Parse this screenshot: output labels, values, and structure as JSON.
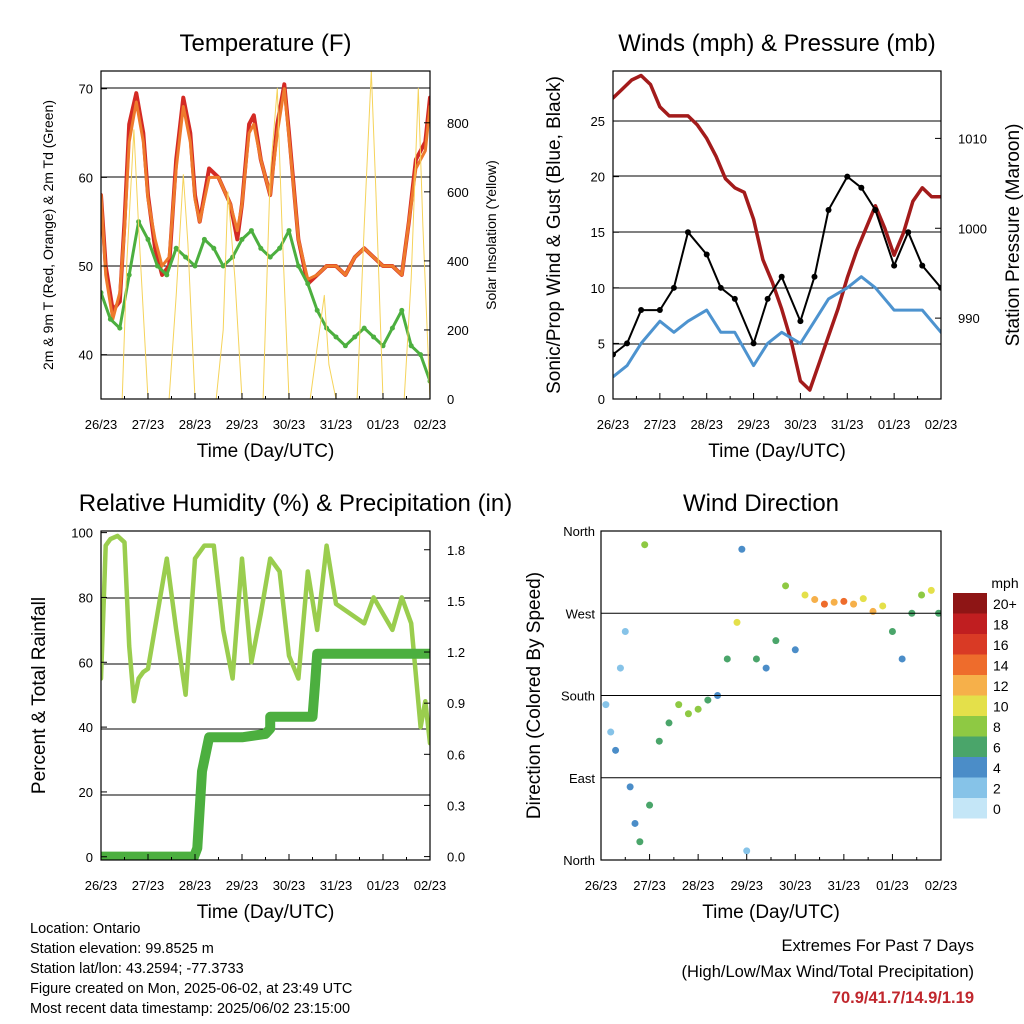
{
  "x_ticks": [
    "26/23",
    "27/23",
    "28/23",
    "29/23",
    "30/23",
    "31/23",
    "01/23",
    "02/23"
  ],
  "xlabel": "Time (Day/UTC)",
  "chart_data": [
    {
      "id": "temperature",
      "type": "line",
      "title": "Temperature (F)",
      "xlabel": "Time (Day/UTC)",
      "ylabel": "2m & 9m T (Red, Orange) & 2m Td (Green)",
      "ylim": [
        35,
        72
      ],
      "yticks": [
        40,
        50,
        60,
        70
      ],
      "y2label": "Solar Insolation (Yellow)",
      "y2lim": [
        0,
        950
      ],
      "y2ticks": [
        0,
        200,
        400,
        600,
        800
      ],
      "x_range_days": [
        0,
        7
      ],
      "series": [
        {
          "role": "2m T",
          "color": "#d42a24",
          "axis": "left",
          "x": [
            0,
            0.1,
            0.25,
            0.4,
            0.5,
            0.6,
            0.75,
            0.9,
            1.0,
            1.15,
            1.3,
            1.45,
            1.6,
            1.75,
            1.9,
            2.0,
            2.1,
            2.3,
            2.5,
            2.75,
            2.9,
            3.0,
            3.15,
            3.25,
            3.4,
            3.6,
            3.75,
            3.9,
            4.0,
            4.2,
            4.4,
            4.6,
            4.8,
            5.0,
            5.2,
            5.4,
            5.6,
            5.8,
            6.0,
            6.2,
            6.4,
            6.55,
            6.7,
            6.8,
            6.9,
            7.0
          ],
          "y": [
            58,
            50,
            45,
            46,
            55,
            66,
            69.5,
            65,
            58,
            52,
            49,
            50,
            62,
            69,
            65,
            58,
            55,
            61,
            60,
            57,
            53,
            57,
            66,
            67,
            62,
            58,
            66,
            70.5,
            65,
            53,
            48,
            49,
            50,
            50,
            49,
            51,
            52,
            51,
            50,
            50,
            49,
            55,
            62,
            63,
            64,
            69
          ]
        },
        {
          "role": "9m T",
          "color": "#ee7a2c",
          "axis": "left",
          "x": [
            0,
            0.1,
            0.25,
            0.4,
            0.5,
            0.6,
            0.75,
            0.9,
            1.0,
            1.15,
            1.3,
            1.45,
            1.6,
            1.75,
            1.9,
            2.0,
            2.1,
            2.3,
            2.5,
            2.75,
            2.9,
            3.0,
            3.15,
            3.25,
            3.4,
            3.6,
            3.75,
            3.9,
            4.0,
            4.2,
            4.4,
            4.6,
            4.8,
            5.0,
            5.2,
            5.4,
            5.6,
            5.8,
            6.0,
            6.2,
            6.4,
            6.55,
            6.7,
            6.8,
            6.9,
            7.0
          ],
          "y": [
            58,
            49,
            44,
            47,
            54,
            64,
            68.5,
            64,
            57.5,
            53,
            50,
            51,
            61,
            68,
            64,
            57.5,
            55,
            60,
            60,
            57,
            54,
            57,
            65,
            66,
            62,
            58,
            65,
            70,
            64.5,
            53,
            48.5,
            49,
            50,
            50,
            49,
            51,
            52,
            51,
            50,
            50,
            49,
            55,
            61,
            62,
            63,
            68
          ]
        },
        {
          "role": "2m Td",
          "color": "#4caf3f",
          "axis": "left",
          "x": [
            0,
            0.2,
            0.4,
            0.6,
            0.8,
            1.0,
            1.2,
            1.4,
            1.6,
            1.8,
            2.0,
            2.2,
            2.4,
            2.6,
            2.8,
            3.0,
            3.2,
            3.4,
            3.6,
            3.8,
            4.0,
            4.2,
            4.4,
            4.6,
            4.8,
            5.0,
            5.2,
            5.4,
            5.6,
            5.8,
            6.0,
            6.2,
            6.4,
            6.6,
            6.8,
            7.0
          ],
          "y": [
            47,
            44,
            43,
            49,
            55,
            53,
            50,
            49,
            52,
            51,
            50,
            53,
            52,
            50,
            51,
            53,
            54,
            52,
            51,
            52,
            54,
            50,
            48,
            45,
            43,
            42,
            41,
            42,
            43,
            42,
            41,
            43,
            45,
            41,
            40,
            37
          ]
        },
        {
          "role": "Solar Insolation",
          "color": "#f5d35a",
          "axis": "right",
          "x": [
            0,
            0.45,
            0.55,
            0.7,
            0.8,
            1.0,
            1.45,
            1.6,
            1.75,
            1.85,
            2.0,
            2.45,
            2.6,
            2.7,
            2.85,
            3.0,
            3.45,
            3.6,
            3.75,
            3.85,
            4.0,
            4.45,
            4.6,
            4.75,
            4.85,
            5.0,
            5.45,
            5.6,
            5.75,
            5.85,
            6.0,
            6.45,
            6.6,
            6.75,
            6.85,
            7.0
          ],
          "y": [
            0,
            0,
            400,
            780,
            500,
            0,
            0,
            300,
            650,
            450,
            0,
            0,
            200,
            600,
            350,
            0,
            0,
            650,
            900,
            500,
            0,
            0,
            150,
            300,
            100,
            0,
            0,
            500,
            950,
            600,
            0,
            0,
            350,
            900,
            500,
            0
          ]
        }
      ]
    },
    {
      "id": "winds",
      "type": "line",
      "title": "Winds (mph) & Pressure (mb)",
      "xlabel": "Time (Day/UTC)",
      "ylabel": "Sonic/Prop Wind & Gust (Blue, Black)",
      "ylim": [
        0,
        29.5
      ],
      "yticks": [
        0,
        5,
        10,
        15,
        20,
        25
      ],
      "y2label": "Station Pressure (Maroon)",
      "y2lim": [
        981,
        1017.5
      ],
      "y2ticks": [
        990,
        1000,
        1010
      ],
      "x_range_days": [
        0,
        7
      ],
      "series": [
        {
          "role": "Station Pressure",
          "color": "#a31b1b",
          "axis": "right",
          "x": [
            0,
            0.2,
            0.4,
            0.6,
            0.8,
            1.0,
            1.2,
            1.4,
            1.6,
            1.8,
            2.0,
            2.2,
            2.4,
            2.6,
            2.8,
            3.0,
            3.2,
            3.4,
            3.6,
            3.8,
            4.0,
            4.2,
            4.4,
            4.6,
            4.8,
            5.0,
            5.2,
            5.4,
            5.6,
            5.8,
            6.0,
            6.2,
            6.4,
            6.6,
            6.8,
            7.0
          ],
          "y": [
            1014.5,
            1015.5,
            1016.5,
            1017,
            1016,
            1013.5,
            1012.5,
            1012.5,
            1012.5,
            1011.5,
            1010,
            1008,
            1005.5,
            1004.5,
            1004,
            1001,
            996.5,
            994,
            991,
            987.5,
            983,
            982,
            985,
            988,
            991,
            994.5,
            997.5,
            1000,
            1002.5,
            1000,
            997,
            999.5,
            1003,
            1004.5,
            1003.5,
            1003.5
          ]
        },
        {
          "role": "Sonic/Prop Wind",
          "color": "#4d93cf",
          "axis": "left",
          "x": [
            0,
            0.3,
            0.6,
            1.0,
            1.3,
            1.6,
            2.0,
            2.3,
            2.6,
            3.0,
            3.3,
            3.6,
            4.0,
            4.3,
            4.6,
            5.0,
            5.3,
            5.6,
            6.0,
            6.3,
            6.6,
            7.0
          ],
          "y": [
            2,
            3,
            5,
            7,
            6,
            7,
            8,
            6,
            6,
            3,
            5,
            6,
            5,
            7,
            9,
            10,
            11,
            10,
            8,
            8,
            8,
            6
          ]
        },
        {
          "role": "Gust",
          "color": "#000000",
          "axis": "left",
          "x": [
            0,
            0.3,
            0.6,
            1.0,
            1.3,
            1.6,
            2.0,
            2.3,
            2.6,
            3.0,
            3.3,
            3.6,
            4.0,
            4.3,
            4.6,
            5.0,
            5.3,
            5.6,
            6.0,
            6.3,
            6.6,
            7.0
          ],
          "y": [
            4,
            5,
            8,
            8,
            10,
            15,
            13,
            10,
            9,
            5,
            9,
            11,
            7,
            11,
            17,
            20,
            19,
            17,
            12,
            15,
            12,
            10
          ]
        }
      ]
    },
    {
      "id": "rh_precip",
      "type": "line",
      "title": "Relative Humidity (%) & Precipitation (in)",
      "xlabel": "Time (Day/UTC)",
      "ylabel": "Percent & Total Rainfall",
      "ylim": [
        -1,
        100.5
      ],
      "yticks": [
        0,
        20,
        40,
        60,
        80,
        100
      ],
      "y2lim": [
        -0.02,
        1.91
      ],
      "y2ticks": [
        0.0,
        0.3,
        0.6,
        0.9,
        1.2,
        1.5,
        1.8
      ],
      "x_range_days": [
        0,
        7
      ],
      "series": [
        {
          "role": "Relative Humidity",
          "color": "#9acd4e",
          "axis": "left",
          "x": [
            0,
            0.1,
            0.2,
            0.35,
            0.5,
            0.6,
            0.7,
            0.8,
            0.9,
            1.0,
            1.2,
            1.4,
            1.6,
            1.8,
            2.0,
            2.2,
            2.4,
            2.6,
            2.8,
            3.0,
            3.2,
            3.4,
            3.6,
            3.8,
            4.0,
            4.2,
            4.4,
            4.6,
            4.8,
            5.0,
            5.2,
            5.4,
            5.6,
            5.8,
            6.0,
            6.2,
            6.4,
            6.6,
            6.8,
            6.9,
            7.0
          ],
          "y": [
            55,
            96,
            98,
            99,
            97,
            65,
            48,
            55,
            57,
            58,
            75,
            92,
            70,
            50,
            92,
            96,
            96,
            70,
            55,
            92,
            60,
            75,
            92,
            88,
            62,
            55,
            88,
            70,
            96,
            78,
            76,
            74,
            72,
            80,
            75,
            70,
            80,
            72,
            40,
            48,
            35
          ]
        },
        {
          "role": "Total Precipitation",
          "color": "#4caf3f",
          "axis": "right",
          "x": [
            0,
            1.98,
            2.05,
            2.15,
            2.3,
            3.0,
            3.5,
            3.6,
            3.6,
            4.5,
            4.55,
            4.6,
            7.0
          ],
          "y": [
            0,
            0,
            0.05,
            0.5,
            0.7,
            0.7,
            0.72,
            0.75,
            0.82,
            0.82,
            1.0,
            1.19,
            1.19
          ]
        }
      ]
    },
    {
      "id": "wind_direction",
      "type": "scatter",
      "title": "Wind Direction",
      "xlabel": "Time (Day/UTC)",
      "ylabel": "Direction (Colored By Speed)",
      "y_categories": [
        "North",
        "East",
        "South",
        "West",
        "North"
      ],
      "ylim": [
        0,
        360
      ],
      "x_range_days": [
        0,
        7
      ],
      "color_by": "speed",
      "colorbar": {
        "unit": "mph",
        "labels": [
          "0",
          "2",
          "4",
          "6",
          "8",
          "10",
          "12",
          "14",
          "16",
          "18",
          "20+"
        ],
        "colors": [
          "#c4e6f7",
          "#86c3e8",
          "#4b8dc8",
          "#4aa56a",
          "#8ec943",
          "#e4e04a",
          "#f6b04a",
          "#ee6c2c",
          "#d93a25",
          "#c01e20",
          "#8e1515"
        ]
      },
      "points": [
        {
          "x": 0.1,
          "dir": 170,
          "spd": 2
        },
        {
          "x": 0.2,
          "dir": 140,
          "spd": 2
        },
        {
          "x": 0.3,
          "dir": 120,
          "spd": 3
        },
        {
          "x": 0.4,
          "dir": 210,
          "spd": 1
        },
        {
          "x": 0.5,
          "dir": 250,
          "spd": 1
        },
        {
          "x": 0.6,
          "dir": 80,
          "spd": 3
        },
        {
          "x": 0.7,
          "dir": 40,
          "spd": 4
        },
        {
          "x": 0.8,
          "dir": 20,
          "spd": 6
        },
        {
          "x": 0.9,
          "dir": 345,
          "spd": 7
        },
        {
          "x": 1.0,
          "dir": 60,
          "spd": 5
        },
        {
          "x": 1.2,
          "dir": 130,
          "spd": 5
        },
        {
          "x": 1.4,
          "dir": 150,
          "spd": 6
        },
        {
          "x": 1.6,
          "dir": 170,
          "spd": 7
        },
        {
          "x": 1.8,
          "dir": 160,
          "spd": 8
        },
        {
          "x": 2.0,
          "dir": 165,
          "spd": 7
        },
        {
          "x": 2.2,
          "dir": 175,
          "spd": 5
        },
        {
          "x": 2.4,
          "dir": 180,
          "spd": 4
        },
        {
          "x": 2.6,
          "dir": 220,
          "spd": 6
        },
        {
          "x": 2.8,
          "dir": 260,
          "spd": 10
        },
        {
          "x": 2.9,
          "dir": 340,
          "spd": 4
        },
        {
          "x": 3.0,
          "dir": 10,
          "spd": 2
        },
        {
          "x": 3.2,
          "dir": 220,
          "spd": 6
        },
        {
          "x": 3.4,
          "dir": 210,
          "spd": 4
        },
        {
          "x": 3.6,
          "dir": 240,
          "spd": 6
        },
        {
          "x": 3.8,
          "dir": 300,
          "spd": 8
        },
        {
          "x": 4.0,
          "dir": 230,
          "spd": 4
        },
        {
          "x": 4.2,
          "dir": 290,
          "spd": 9
        },
        {
          "x": 4.4,
          "dir": 285,
          "spd": 12
        },
        {
          "x": 4.6,
          "dir": 280,
          "spd": 13
        },
        {
          "x": 4.8,
          "dir": 282,
          "spd": 11
        },
        {
          "x": 5.0,
          "dir": 283,
          "spd": 14
        },
        {
          "x": 5.2,
          "dir": 280,
          "spd": 12
        },
        {
          "x": 5.4,
          "dir": 286,
          "spd": 10
        },
        {
          "x": 5.6,
          "dir": 272,
          "spd": 12
        },
        {
          "x": 5.8,
          "dir": 278,
          "spd": 9
        },
        {
          "x": 6.0,
          "dir": 250,
          "spd": 6
        },
        {
          "x": 6.2,
          "dir": 220,
          "spd": 4
        },
        {
          "x": 6.4,
          "dir": 270,
          "spd": 6
        },
        {
          "x": 6.6,
          "dir": 290,
          "spd": 8
        },
        {
          "x": 6.8,
          "dir": 295,
          "spd": 10
        },
        {
          "x": 6.95,
          "dir": 270,
          "spd": 6
        }
      ]
    }
  ],
  "info": {
    "location": "Location: Ontario",
    "elevation": "Station elevation: 99.8525 m",
    "latlon": "Station lat/lon: 43.2594; -77.3733",
    "created": "Figure created on Mon, 2025-06-02, at 23:49 UTC",
    "latest": "Most recent data timestamp: 2025/06/02 23:15:00"
  },
  "extremes": {
    "line1": "Extremes For Past 7 Days",
    "line2": "(High/Low/Max Wind/Total Precipitation)",
    "values": "70.9/41.7/14.9/1.19",
    "value_color": "#c0272d"
  }
}
